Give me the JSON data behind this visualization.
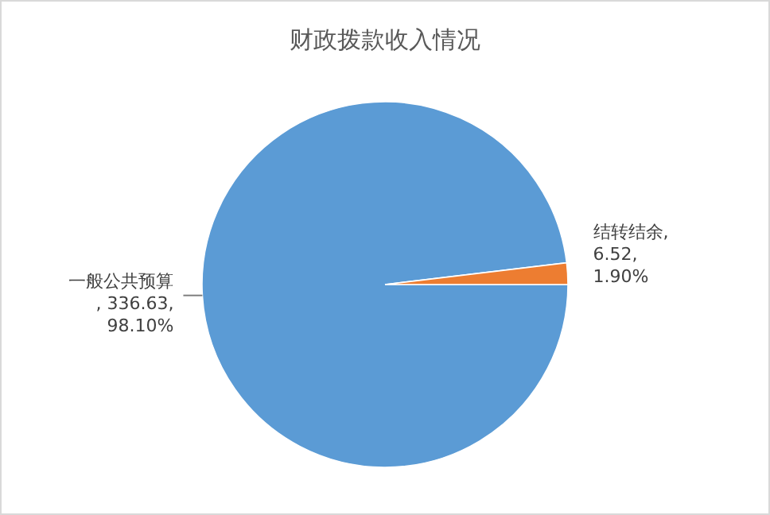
{
  "chart_data": {
    "type": "pie",
    "title": "财政拨款收入情况",
    "categories": [
      "一般公共预算",
      "结转结余"
    ],
    "values": [
      336.63,
      6.52
    ],
    "colors": [
      "#5b9bd5",
      "#ed7d31"
    ],
    "value_labels": [
      ", 336.63, 98.10%",
      ", 6.52, 1.90%"
    ]
  }
}
